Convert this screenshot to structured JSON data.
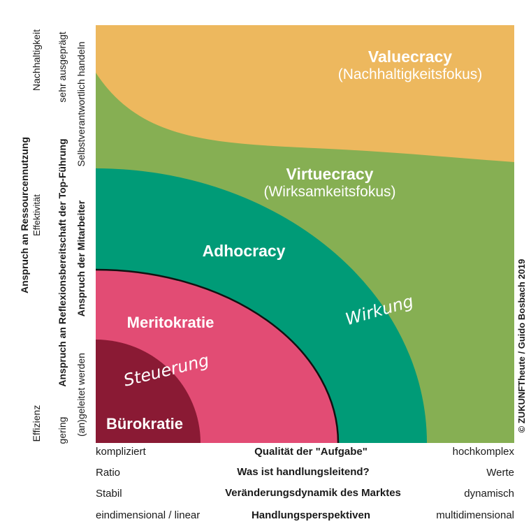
{
  "colors": {
    "valuecracy": "#EDB85E",
    "virtuecracy": "#86AF53",
    "adhocracy": "#009B77",
    "meritokratie": "#E24C74",
    "buerokratie": "#8A1A34"
  },
  "zones": {
    "valuecracy": {
      "title": "Valuecracy",
      "subtitle": "(Nachhaltigkeitsfokus)"
    },
    "virtuecracy": {
      "title": "Virtuecracy",
      "subtitle": "(Wirksamkeitsfokus)"
    },
    "adhocracy": {
      "title": "Adhocracy"
    },
    "meritokratie": {
      "title": "Meritokratie"
    },
    "buerokratie": {
      "title": "Bürokratie"
    }
  },
  "arc_labels": {
    "steuerung": "Steuerung",
    "wirkung": "Wirkung"
  },
  "y_axes": [
    {
      "title": "Anspruch an Ressourcennutzung",
      "low": "Effizienz",
      "high": "Nachhaltigkeit",
      "mid": "Effektivität"
    },
    {
      "title": "Anspruch an Reflexionsbereitschaft der Top-Führung",
      "low": "gering",
      "high": "sehr ausgeprägt"
    },
    {
      "title": "Anspruch der Mitarbeiter",
      "low": "(an)geleitet werden",
      "high": "Selbstverantwortlich handeln"
    }
  ],
  "x_axes": [
    {
      "title": "Qualität der \"Aufgabe\"",
      "low": "kompliziert",
      "high": "hochkomplex"
    },
    {
      "title": "Was ist handlungsleitend?",
      "low": "Ratio",
      "high": "Werte"
    },
    {
      "title": "Veränderungsdynamik des Marktes",
      "low": "Stabil",
      "high": "dynamisch"
    },
    {
      "title": "Handlungsperspektiven",
      "low": "eindimensional / linear",
      "high": "multidimensional"
    }
  ],
  "copyright": "© ZUKUNFTheute / Guido Bosbach 2019"
}
